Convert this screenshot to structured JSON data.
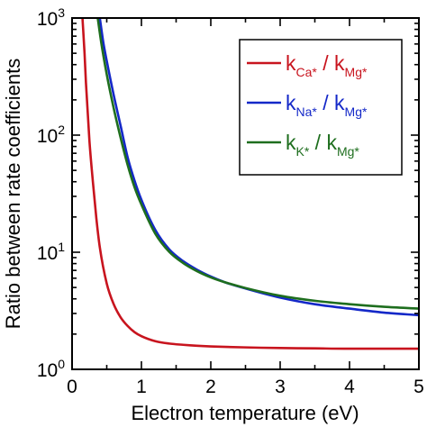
{
  "chart_data": {
    "type": "line",
    "xlabel": "Electron temperature  (eV)",
    "ylabel": "Ratio between rate coefficients",
    "xlim": [
      0,
      5
    ],
    "ylim": [
      1,
      1000
    ],
    "y_scale": "log",
    "grid": false,
    "legend_position": "top-right",
    "x_ticks": [
      "0",
      "1",
      "2",
      "3",
      "4",
      "5"
    ],
    "y_ticks": [
      {
        "base": "10",
        "exp": "0",
        "value": 1
      },
      {
        "base": "10",
        "exp": "1",
        "value": 10
      },
      {
        "base": "10",
        "exp": "2",
        "value": 100
      },
      {
        "base": "10",
        "exp": "3",
        "value": 1000
      }
    ],
    "series": [
      {
        "color": "#c8141e",
        "legend": {
          "k": "k",
          "sub1": "Ca*",
          "slash": " / ",
          "k2": "k",
          "sub2": "Mg*"
        },
        "x": [
          0.15,
          0.18,
          0.2,
          0.25,
          0.3,
          0.35,
          0.4,
          0.5,
          0.6,
          0.7,
          0.8,
          0.9,
          1.0,
          1.2,
          1.4,
          1.6,
          1.8,
          2.0,
          2.5,
          3.0,
          3.5,
          4.0,
          4.5,
          5.0
        ],
        "y": [
          1000,
          500,
          280,
          90,
          40,
          19.5,
          11,
          5.4,
          3.6,
          2.78,
          2.35,
          2.08,
          1.92,
          1.74,
          1.66,
          1.62,
          1.59,
          1.57,
          1.54,
          1.52,
          1.51,
          1.5,
          1.5,
          1.5
        ]
      },
      {
        "color": "#1428c8",
        "legend": {
          "k": "k",
          "sub1": "Na*",
          "slash": " / ",
          "k2": "k",
          "sub2": "Mg*"
        },
        "x": [
          0.4,
          0.45,
          0.5,
          0.6,
          0.7,
          0.8,
          0.9,
          1.0,
          1.2,
          1.4,
          1.6,
          1.8,
          2.0,
          2.2,
          2.5,
          3.0,
          3.5,
          4.0,
          4.5,
          5.0
        ],
        "y": [
          1000,
          620,
          430,
          220,
          120,
          65,
          41,
          28,
          15.5,
          10.6,
          8.4,
          7.1,
          6.2,
          5.55,
          4.9,
          4.1,
          3.6,
          3.3,
          3.05,
          2.9
        ]
      },
      {
        "color": "#1e6e1e",
        "legend": {
          "k": "k",
          "sub1": "K*",
          "slash": " / ",
          "k2": "k",
          "sub2": "Mg*"
        },
        "x": [
          0.37,
          0.42,
          0.5,
          0.6,
          0.7,
          0.8,
          0.9,
          1.0,
          1.2,
          1.4,
          1.6,
          1.8,
          2.0,
          2.2,
          2.5,
          3.0,
          3.5,
          4.0,
          4.5,
          5.0
        ],
        "y": [
          1000,
          620,
          330,
          170,
          95,
          56,
          36,
          25.5,
          14.4,
          10.1,
          8.1,
          6.9,
          6.1,
          5.55,
          4.95,
          4.25,
          3.85,
          3.6,
          3.42,
          3.3
        ]
      }
    ]
  }
}
